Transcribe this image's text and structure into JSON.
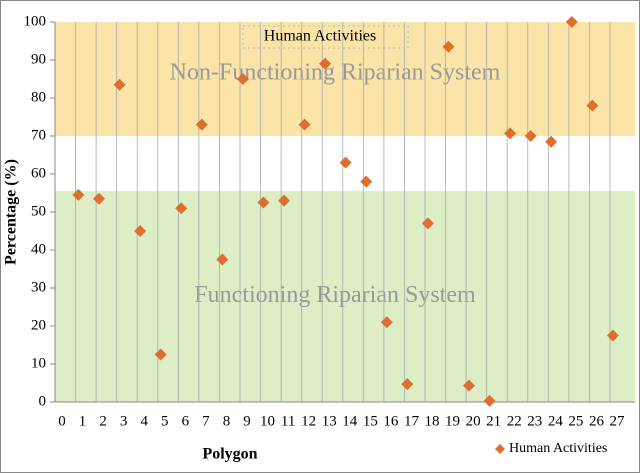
{
  "chart_data": {
    "type": "scatter",
    "title": "Human Activities",
    "xlabel": "Polygon",
    "ylabel": "Percentage (%)",
    "series": [
      {
        "name": "Human Activities",
        "color": "#dd6f2e",
        "x": [
          0.8,
          1.8,
          2.8,
          3.8,
          4.8,
          5.8,
          6.8,
          7.8,
          8.8,
          9.8,
          10.8,
          11.8,
          12.8,
          13.8,
          14.8,
          15.8,
          16.8,
          17.8,
          18.8,
          19.8,
          20.8,
          21.8,
          22.8,
          23.8,
          24.8,
          25.8,
          26.8
        ],
        "values": [
          54.5,
          53.5,
          83.5,
          45,
          12.5,
          51,
          73,
          37.5,
          85,
          52.5,
          53,
          73,
          89,
          63,
          58,
          21,
          4.7,
          47,
          93.5,
          4.3,
          0.3,
          70.7,
          70,
          68.5,
          100,
          78,
          17.5
        ]
      }
    ],
    "regions": [
      {
        "label": "Non-Functioning Riparian System",
        "range": [
          70,
          100
        ],
        "color": "#fbe4a8"
      },
      {
        "label": "Functioning Riparian System",
        "range": [
          0,
          55.5
        ],
        "color": "#ddedc5"
      }
    ],
    "xlim": [
      0,
      27
    ],
    "xticks": [
      0,
      1,
      2,
      3,
      4,
      5,
      6,
      7,
      8,
      9,
      10,
      11,
      12,
      13,
      14,
      15,
      16,
      17,
      18,
      19,
      20,
      21,
      22,
      23,
      24,
      25,
      26,
      27
    ],
    "ylim": [
      0,
      100
    ],
    "yticks": [
      0,
      10,
      20,
      30,
      40,
      50,
      60,
      70,
      80,
      90,
      100
    ],
    "grid": true,
    "legend": "bottom-right"
  }
}
